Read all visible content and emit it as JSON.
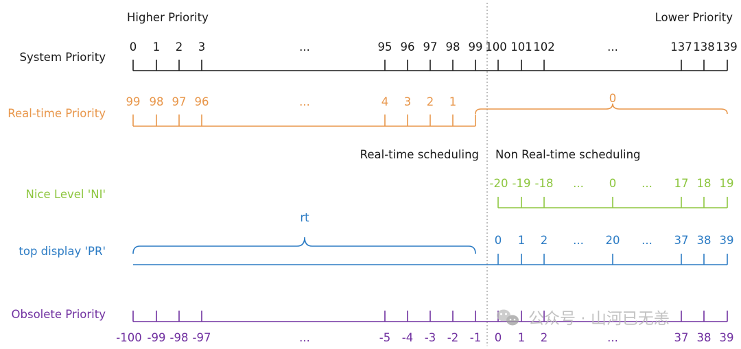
{
  "colors": {
    "black": "#1a1a1a",
    "orange": "#e8964a",
    "green": "#8dc63f",
    "blue": "#2b7bc4",
    "purple": "#7030a0",
    "divider": "#aaaaaa",
    "watermark": "#b8b8b8"
  },
  "header": {
    "higher": "Higher Priority",
    "lower": "Lower Priority"
  },
  "section_labels": {
    "rt_sched": "Real-time scheduling",
    "nrt_sched": "Non Real-time scheduling"
  },
  "rows": {
    "system": {
      "label": "System Priority",
      "ticks": [
        "0",
        "1",
        "2",
        "3",
        "...",
        "95",
        "96",
        "97",
        "98",
        "99",
        "100",
        "101",
        "102",
        "...",
        "137",
        "138",
        "139"
      ]
    },
    "realtime": {
      "label": "Real-time Priority",
      "ticks": [
        "99",
        "98",
        "97",
        "96",
        "...",
        "4",
        "3",
        "2",
        "1"
      ],
      "brace_label": "0"
    },
    "nice": {
      "label": "Nice Level 'NI'",
      "ticks": [
        "-20",
        "-19",
        "-18",
        "...",
        "0",
        "...",
        "17",
        "18",
        "19"
      ]
    },
    "pr": {
      "label": "top display 'PR'",
      "brace_label": "rt",
      "ticks": [
        "0",
        "1",
        "2",
        "...",
        "20",
        "...",
        "37",
        "38",
        "39"
      ]
    },
    "obsolete": {
      "label": "Obsolete Priority",
      "ticks": [
        "-100",
        "-99",
        "-98",
        "-97",
        "...",
        "-5",
        "-4",
        "-3",
        "-2",
        "-1",
        "0",
        "1",
        "2",
        "...",
        "37",
        "38",
        "39"
      ]
    }
  },
  "watermark": {
    "icon": "wechat-icon",
    "text": "公众号 · 山河已无恙"
  }
}
